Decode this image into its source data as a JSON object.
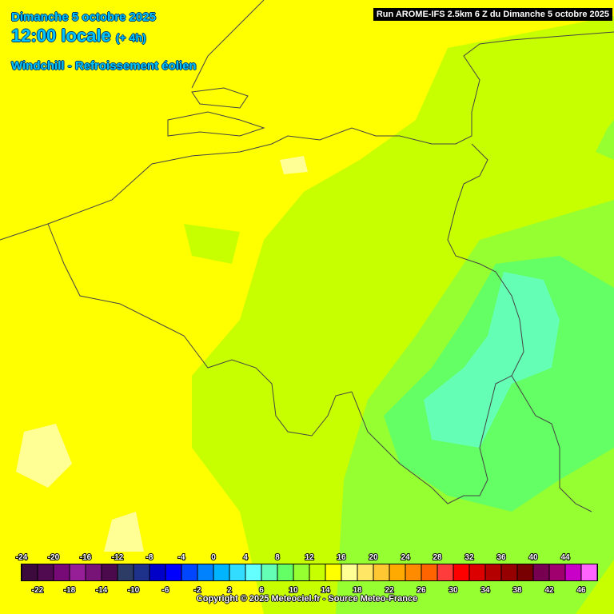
{
  "header": {
    "date": "Dimanche 5 octobre 2025",
    "time": "12:00 locale",
    "offset": "(+ 4h)",
    "parameter": "Windchill - Refroissement éolien",
    "run": "Run AROME-IFS 2.5km 6 Z du Dimanche 5 octobre 2025"
  },
  "legend": {
    "stops": [
      {
        "value": -24,
        "color": "#3c0a3c"
      },
      {
        "value": -22,
        "color": "#500a50"
      },
      {
        "value": -20,
        "color": "#780a78"
      },
      {
        "value": -18,
        "color": "#961e96"
      },
      {
        "value": -16,
        "color": "#781478"
      },
      {
        "value": -14,
        "color": "#4b0a4b"
      },
      {
        "value": -12,
        "color": "#2d3c64"
      },
      {
        "value": -10,
        "color": "#1e328c"
      },
      {
        "value": -8,
        "color": "#0000c8"
      },
      {
        "value": -6,
        "color": "#0000ff"
      },
      {
        "value": -4,
        "color": "#0046ff"
      },
      {
        "value": -2,
        "color": "#0082ff"
      },
      {
        "value": 0,
        "color": "#00b4ff"
      },
      {
        "value": 2,
        "color": "#32dcff"
      },
      {
        "value": 4,
        "color": "#64ffff"
      },
      {
        "value": 6,
        "color": "#64ffb4"
      },
      {
        "value": 8,
        "color": "#64ff64"
      },
      {
        "value": 10,
        "color": "#96ff32"
      },
      {
        "value": 12,
        "color": "#c8ff00"
      },
      {
        "value": 14,
        "color": "#ffff00"
      },
      {
        "value": 16,
        "color": "#ffff96"
      },
      {
        "value": 18,
        "color": "#ffe664"
      },
      {
        "value": 20,
        "color": "#ffc832"
      },
      {
        "value": 22,
        "color": "#ffaa00"
      },
      {
        "value": 24,
        "color": "#ff8c00"
      },
      {
        "value": 26,
        "color": "#ff6400"
      },
      {
        "value": 28,
        "color": "#ff3c3c"
      },
      {
        "value": 30,
        "color": "#ff0000"
      },
      {
        "value": 32,
        "color": "#dc0000"
      },
      {
        "value": 34,
        "color": "#b40000"
      },
      {
        "value": 36,
        "color": "#960000"
      },
      {
        "value": 38,
        "color": "#780000"
      },
      {
        "value": 40,
        "color": "#780050"
      },
      {
        "value": 42,
        "color": "#a0006e"
      },
      {
        "value": 44,
        "color": "#c800c8"
      },
      {
        "value": 46,
        "color": "#ff64ff"
      }
    ]
  },
  "footer": {
    "copyright": "Copyright © 2025 Meteociel.fr - Source Meteo-France"
  }
}
